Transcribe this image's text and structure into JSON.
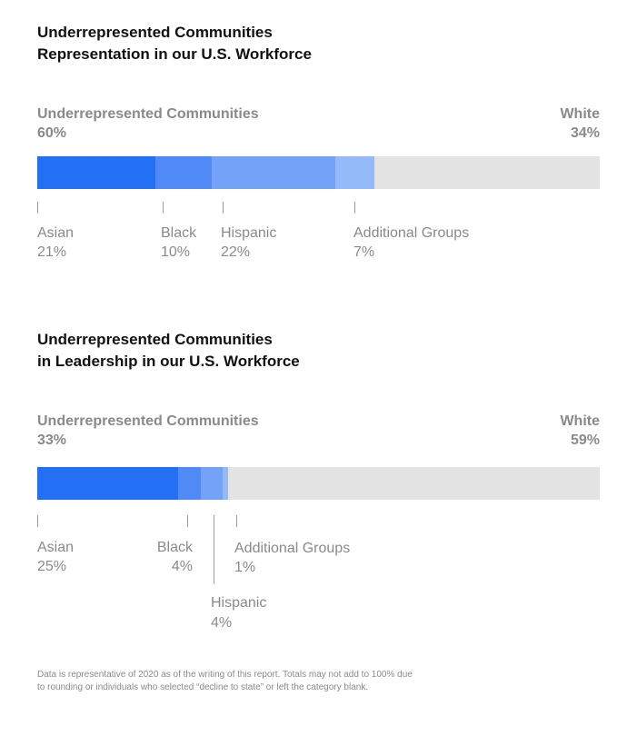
{
  "chart_data": [
    {
      "type": "bar",
      "orientation": "horizontal-stacked",
      "title_line1": "Underrepresented Communities",
      "title_line2": "Representation in our U.S. Workforce",
      "left_group": {
        "label": "Underrepresented Communities",
        "value": 60,
        "value_text": "60%"
      },
      "right_group": {
        "label": "White",
        "value": 34,
        "value_text": "34%"
      },
      "series": [
        {
          "name": "Asian",
          "value": 21,
          "value_text": "21%",
          "color": "#2470f5"
        },
        {
          "name": "Black",
          "value": 10,
          "value_text": "10%",
          "color": "#4f8af7"
        },
        {
          "name": "Hispanic",
          "value": 22,
          "value_text": "22%",
          "color": "#74a2f8"
        },
        {
          "name": "Additional Groups",
          "value": 7,
          "value_text": "7%",
          "color": "#95baf9"
        }
      ],
      "remainder_color": "#e3e3e3",
      "xlim": [
        0,
        100
      ]
    },
    {
      "type": "bar",
      "orientation": "horizontal-stacked",
      "title_line1": "Underrepresented Communities",
      "title_line2": "in Leadership in our U.S. Workforce",
      "left_group": {
        "label": "Underrepresented Communities",
        "value": 33,
        "value_text": "33%"
      },
      "right_group": {
        "label": "White",
        "value": 59,
        "value_text": "59%"
      },
      "series": [
        {
          "name": "Asian",
          "value": 25,
          "value_text": "25%",
          "color": "#2470f5"
        },
        {
          "name": "Black",
          "value": 4,
          "value_text": "4%",
          "color": "#4f8af7"
        },
        {
          "name": "Hispanic",
          "value": 4,
          "value_text": "4%",
          "color": "#74a2f8"
        },
        {
          "name": "Additional Groups",
          "value": 1,
          "value_text": "1%",
          "color": "#95baf9"
        }
      ],
      "remainder_color": "#e3e3e3",
      "xlim": [
        0,
        100
      ]
    }
  ],
  "footnote": "Data is representative of 2020 as of the writing of this report. Totals may not add to 100% due to rounding or individuals who selected “decline to state” or left the category blank."
}
